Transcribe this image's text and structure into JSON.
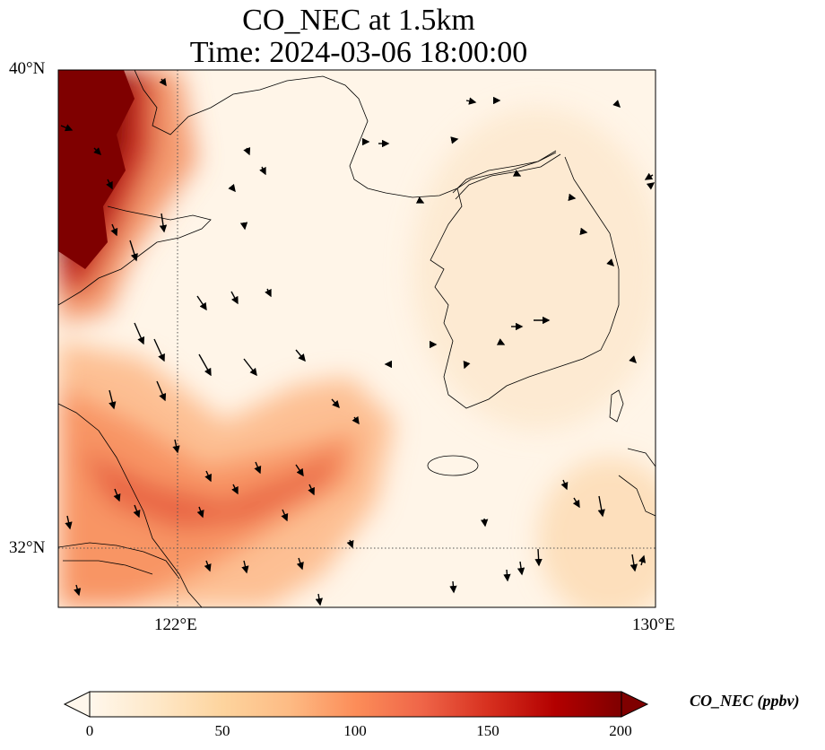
{
  "title": {
    "line1": "CO_NEC at 1.5km",
    "line2": "Time: 2024-03-06 18:00:00"
  },
  "map": {
    "lat_labels": [
      "40°N",
      "32°N"
    ],
    "lon_labels": [
      "122°E",
      "130°E"
    ],
    "extent": {
      "lon_min": 120,
      "lon_max": 130,
      "lat_min": 31,
      "lat_max": 40
    },
    "gridlines": {
      "lons": [
        122
      ],
      "lats": [
        32
      ],
      "style": "dotted"
    }
  },
  "colorbar": {
    "label": "CO_NEC (ppbv)",
    "ticks": [
      "0",
      "50",
      "100",
      "150",
      "200"
    ],
    "range": [
      0,
      200
    ],
    "colormap": "OrRd",
    "colors": [
      "#fff7ec",
      "#fee8c8",
      "#fdd49e",
      "#fdbb84",
      "#fc8d59",
      "#ef6548",
      "#d7301f",
      "#b30000",
      "#7f0000"
    ],
    "extend": "both"
  }
}
